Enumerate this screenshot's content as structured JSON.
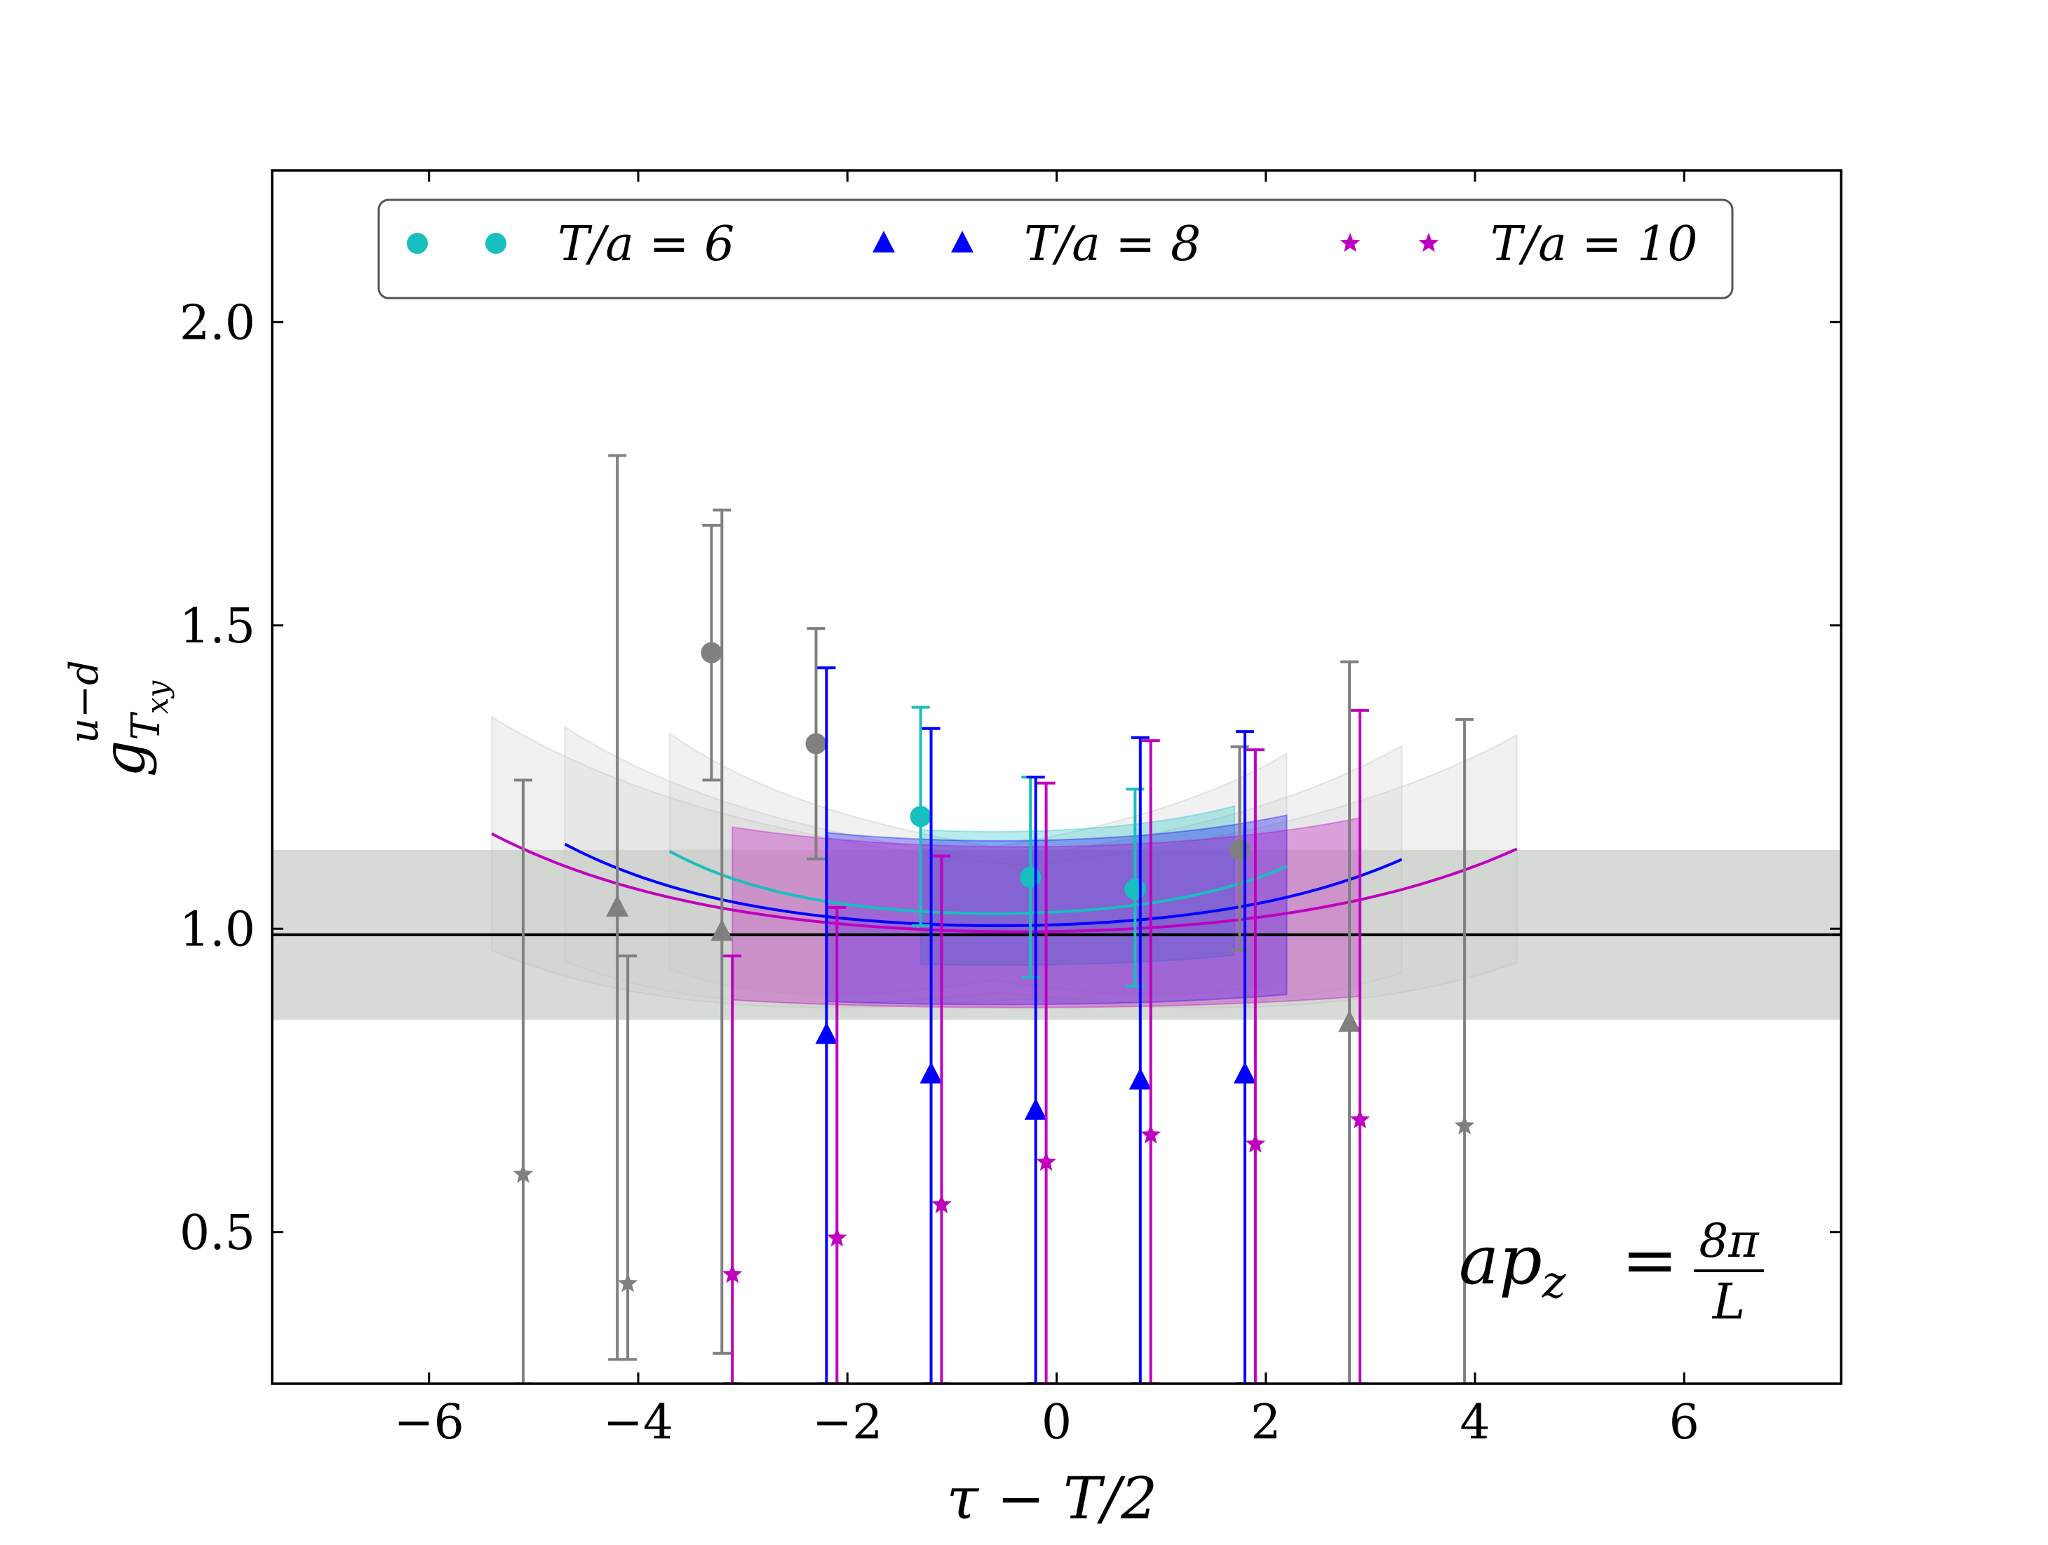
{
  "chart_data": {
    "type": "scatter",
    "xlabel": "τ − T/2",
    "ylabel": {
      "base": "g",
      "sub": "T",
      "subsub": "xy",
      "sup": "u−d"
    },
    "xlim": [
      -7.5,
      7.5
    ],
    "ylim": [
      0.25,
      2.25
    ],
    "xticks": [
      -6,
      -4,
      -2,
      0,
      2,
      4,
      6
    ],
    "yticks": [
      0.5,
      1.0,
      1.5,
      2.0
    ],
    "xtick_labels": [
      "−6",
      "−4",
      "−2",
      "0",
      "2",
      "4",
      "6"
    ],
    "ytick_labels": [
      "0.5",
      "1.0",
      "1.5",
      "2.0"
    ],
    "grid": false,
    "legend_position": "top",
    "annotation": {
      "lhs": "ap",
      "lhs_sub": "z",
      "eq": "=",
      "numerator": "8π",
      "denominator": "L"
    },
    "reference": {
      "value": 0.99,
      "band": [
        0.85,
        1.13
      ],
      "band_color": "#d6dcd5",
      "line_color": "#000000"
    },
    "series": [
      {
        "name": "T/a = 6",
        "legend_label": "T/a = 6",
        "marker": "circle",
        "color": "#17bfbf",
        "excluded_color": "#808080",
        "points": [
          {
            "x": -3.3,
            "y": 1.455,
            "lo": 1.245,
            "hi": 1.665,
            "included": false
          },
          {
            "x": -2.3,
            "y": 1.305,
            "lo": 1.115,
            "hi": 1.495,
            "included": false
          },
          {
            "x": -1.3,
            "y": 1.185,
            "lo": 1.005,
            "hi": 1.365,
            "included": true
          },
          {
            "x": -0.25,
            "y": 1.085,
            "lo": 0.92,
            "hi": 1.25,
            "included": true
          },
          {
            "x": 0.75,
            "y": 1.065,
            "lo": 0.905,
            "hi": 1.23,
            "included": true
          },
          {
            "x": 1.75,
            "y": 1.13,
            "lo": 0.965,
            "hi": 1.3,
            "included": false
          }
        ],
        "fit_band": {
          "x_from": -1.3,
          "x_to": 1.7,
          "center": 1.06,
          "hi_center": 1.16,
          "lo_center": 0.94
        },
        "curve": {
          "x_from": -3.7,
          "x_to": 2.2,
          "center": 1.025
        }
      },
      {
        "name": "T/a = 8",
        "legend_label": "T/a = 8",
        "marker": "triangle",
        "color": "#0000ff",
        "excluded_color": "#808080",
        "points": [
          {
            "x": -4.2,
            "y": 1.035,
            "lo": 0.29,
            "hi": 1.78,
            "included": false
          },
          {
            "x": -3.2,
            "y": 0.995,
            "lo": 0.3,
            "hi": 1.69,
            "included": false
          },
          {
            "x": -2.2,
            "y": 0.825,
            "lo": 0.25,
            "hi": 1.43,
            "included": true
          },
          {
            "x": -1.2,
            "y": 0.76,
            "lo": 0.25,
            "hi": 1.33,
            "included": true
          },
          {
            "x": -0.2,
            "y": 0.7,
            "lo": 0.25,
            "hi": 1.25,
            "included": true
          },
          {
            "x": 0.8,
            "y": 0.75,
            "lo": 0.25,
            "hi": 1.315,
            "included": true
          },
          {
            "x": 1.8,
            "y": 0.76,
            "lo": 0.25,
            "hi": 1.325,
            "included": true
          },
          {
            "x": 2.8,
            "y": 0.845,
            "lo": 0.25,
            "hi": 1.44,
            "included": false
          }
        ],
        "fit_band": {
          "x_from": -2.2,
          "x_to": 2.2,
          "center": 1.005,
          "hi_center": 1.145,
          "lo_center": 0.875
        },
        "curve": {
          "x_from": -4.7,
          "x_to": 3.3,
          "center": 1.005
        }
      },
      {
        "name": "T/a = 10",
        "legend_label": "T/a = 10",
        "marker": "star",
        "color": "#bf00bf",
        "excluded_color": "#808080",
        "points": [
          {
            "x": -5.1,
            "y": 0.595,
            "lo": 0.25,
            "hi": 1.245,
            "included": false
          },
          {
            "x": -4.1,
            "y": 0.415,
            "lo": 0.29,
            "hi": 0.955,
            "included": false
          },
          {
            "x": -3.1,
            "y": 0.43,
            "lo": 0.25,
            "hi": 0.955,
            "included": true
          },
          {
            "x": -2.1,
            "y": 0.49,
            "lo": 0.25,
            "hi": 1.035,
            "included": true
          },
          {
            "x": -1.1,
            "y": 0.545,
            "lo": 0.25,
            "hi": 1.12,
            "included": true
          },
          {
            "x": -0.1,
            "y": 0.615,
            "lo": 0.25,
            "hi": 1.24,
            "included": true
          },
          {
            "x": 0.9,
            "y": 0.66,
            "lo": 0.25,
            "hi": 1.31,
            "included": true
          },
          {
            "x": 1.9,
            "y": 0.645,
            "lo": 0.25,
            "hi": 1.295,
            "included": true
          },
          {
            "x": 2.9,
            "y": 0.685,
            "lo": 0.25,
            "hi": 1.36,
            "included": true
          },
          {
            "x": 3.9,
            "y": 0.675,
            "lo": 0.25,
            "hi": 1.345,
            "included": false
          }
        ],
        "fit_band": {
          "x_from": -3.1,
          "x_to": 2.9,
          "center": 0.995,
          "hi_center": 1.135,
          "lo_center": 0.87
        },
        "curve": {
          "x_from": -5.4,
          "x_to": 4.4,
          "center": 0.995
        }
      }
    ]
  }
}
